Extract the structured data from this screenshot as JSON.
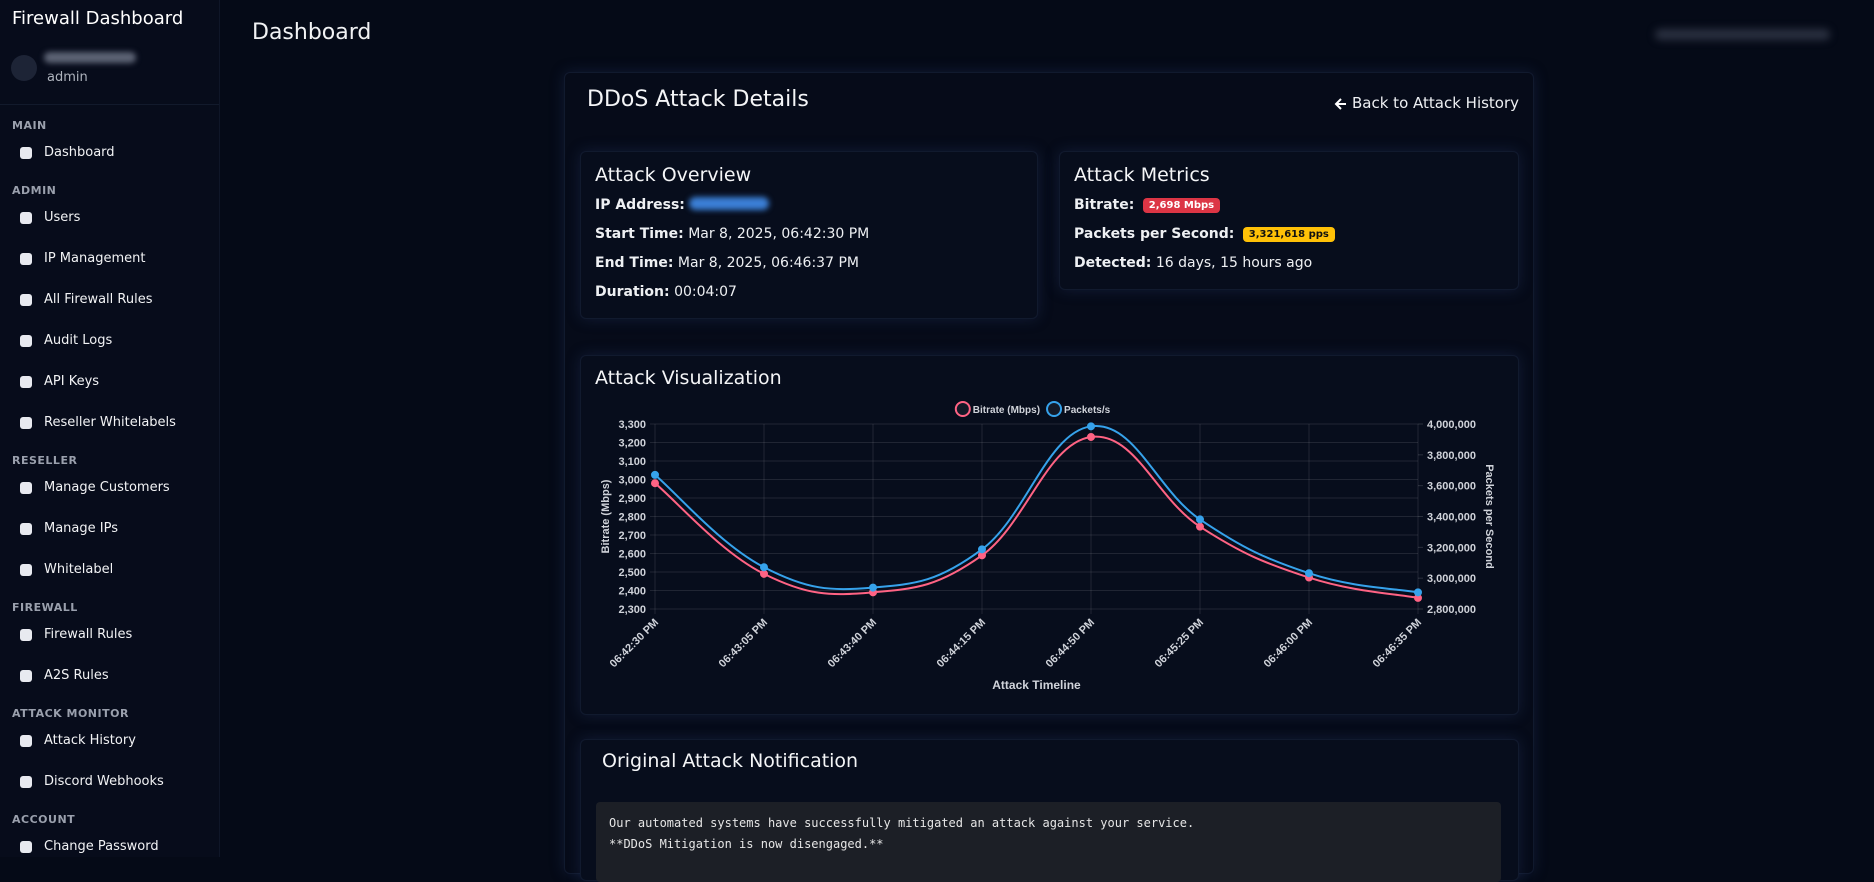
{
  "sidebar": {
    "brand": "Firewall Dashboard",
    "user_role": "admin",
    "sections": [
      {
        "title": "MAIN",
        "items": [
          "Dashboard"
        ]
      },
      {
        "title": "ADMIN",
        "items": [
          "Users",
          "IP Management",
          "All Firewall Rules",
          "Audit Logs",
          "API Keys",
          "Reseller Whitelabels"
        ]
      },
      {
        "title": "RESELLER",
        "items": [
          "Manage Customers",
          "Manage IPs",
          "Whitelabel"
        ]
      },
      {
        "title": "FIREWALL",
        "items": [
          "Firewall Rules",
          "A2S Rules"
        ]
      },
      {
        "title": "ATTACK MONITOR",
        "items": [
          "Attack History",
          "Discord Webhooks"
        ]
      },
      {
        "title": "ACCOUNT",
        "items": [
          "Change Password"
        ]
      }
    ]
  },
  "header": {
    "title": "Dashboard"
  },
  "details": {
    "title": "DDoS Attack Details",
    "back_link": "Back to Attack History",
    "overview": {
      "title": "Attack Overview",
      "fields": [
        {
          "label": "IP Address:"
        },
        {
          "label": "Start Time:",
          "value": "Mar 8, 2025, 06:42:30 PM"
        },
        {
          "label": "End Time:",
          "value": "Mar 8, 2025, 06:46:37 PM"
        },
        {
          "label": "Duration:",
          "value": "00:04:07"
        }
      ]
    },
    "metrics": {
      "title": "Attack Metrics",
      "fields": [
        {
          "label": "Bitrate:",
          "badge": "2,698 Mbps",
          "badge_color": "#dc3545"
        },
        {
          "label": "Packets per Second:",
          "badge": "3,321,618 pps",
          "badge_color": "#ffc107"
        },
        {
          "label": "Detected:",
          "value": "16 days, 15 hours ago"
        }
      ]
    }
  },
  "notification": {
    "title": "Original Attack Notification",
    "lines": [
      "Our automated systems have successfully mitigated an attack against your service.",
      "**DDoS Mitigation is now disengaged.**"
    ]
  },
  "chart_data": {
    "type": "line",
    "title": "Attack Visualization",
    "x_label": "Attack Timeline",
    "y_label": "Bitrate (Mbps)",
    "y2_label": "Packets per Second",
    "categories": [
      "06:42:30 PM",
      "06:43:05 PM",
      "06:43:40 PM",
      "06:44:15 PM",
      "06:44:50 PM",
      "06:45:25 PM",
      "06:46:00 PM",
      "06:46:35 PM"
    ],
    "series": [
      {
        "name": "Bitrate (Mbps)",
        "color": "#ff6384",
        "values": [
          2980,
          2490,
          2390,
          2590,
          3230,
          2745,
          2470,
          2360
        ]
      },
      {
        "name": "Packets/s",
        "color": "#36a2eb",
        "axis": "y2",
        "values": [
          3670000,
          3071000,
          2939000,
          3187000,
          3985000,
          3381000,
          3032000,
          2908000
        ]
      }
    ],
    "ylim": [
      2300,
      3300
    ],
    "yticks": [
      {
        "value": 2300,
        "label": "2,300"
      },
      {
        "value": 2400,
        "label": "2,400"
      },
      {
        "value": 2500,
        "label": "2,500"
      },
      {
        "value": 2600,
        "label": "2,600"
      },
      {
        "value": 2700,
        "label": "2,700"
      },
      {
        "value": 2800,
        "label": "2,800"
      },
      {
        "value": 2900,
        "label": "2,900"
      },
      {
        "value": 3000,
        "label": "3,000"
      },
      {
        "value": 3100,
        "label": "3,100"
      },
      {
        "value": 3200,
        "label": "3,200"
      },
      {
        "value": 3300,
        "label": "3,300"
      }
    ],
    "y2lim": [
      2800000,
      4000000
    ],
    "y2ticks": [
      {
        "value": 2800000,
        "label": "2,800,000"
      },
      {
        "value": 3000000,
        "label": "3,000,000"
      },
      {
        "value": 3200000,
        "label": "3,200,000"
      },
      {
        "value": 3400000,
        "label": "3,400,000"
      },
      {
        "value": 3600000,
        "label": "3,600,000"
      },
      {
        "value": 3800000,
        "label": "3,800,000"
      },
      {
        "value": 4000000,
        "label": "4,000,000"
      }
    ],
    "grid": true,
    "legend": "top"
  }
}
